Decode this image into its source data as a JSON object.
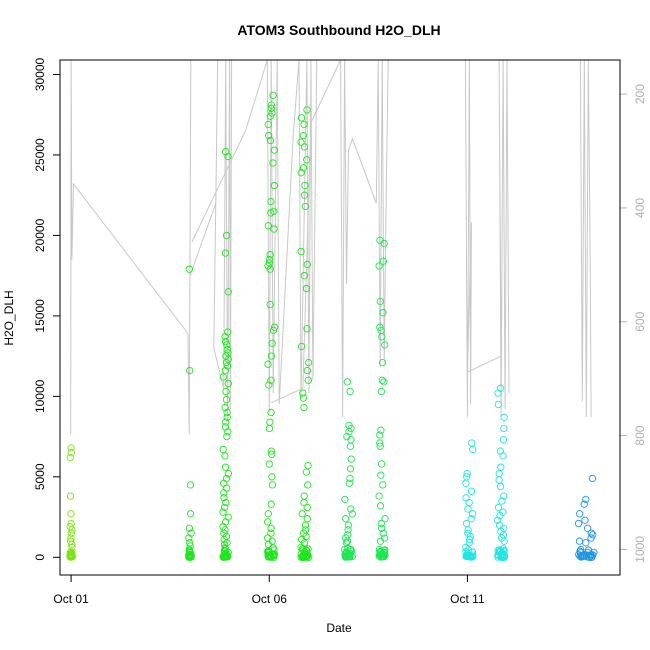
{
  "chart_data": {
    "type": "scatter",
    "title": "ATOM3 Southbound H2O_DLH",
    "xlabel": "Date",
    "ylabel": "H2O_DLH",
    "x_ticks": [
      {
        "day": 1,
        "label": "Oct 01"
      },
      {
        "day": 6,
        "label": "Oct 06"
      },
      {
        "day": 11,
        "label": "Oct 11"
      }
    ],
    "xlim": [
      0.72,
      14.85
    ],
    "y_ticks": [
      0,
      5000,
      10000,
      15000,
      20000,
      25000,
      30000
    ],
    "ylim": [
      -1100,
      30900
    ],
    "y2_ticks": [
      200,
      400,
      600,
      800,
      1000
    ],
    "y2lim": [
      1045,
      140
    ],
    "y2_note": "secondary axis (pressure), inverted",
    "colors": {
      "green_early": "#7be60f",
      "green": "#1ee61e",
      "green_mid": "#1ee650",
      "cyan_green": "#1ee6aa",
      "cyan": "#1ee6e6",
      "sky": "#1eb4e6",
      "blue": "#1e96e6",
      "gray_line": "#c8c8c8",
      "axis_right": "#b0b0b0"
    },
    "clusters": [
      {
        "day": 1.0,
        "width": 0.06,
        "color": "#7be60f",
        "high": [
          6800,
          6500,
          6200,
          3800,
          2700,
          2100,
          1900,
          1700,
          1500,
          1200,
          1000,
          800
        ]
      },
      {
        "day": 4.0,
        "width": 0.06,
        "color": "#1ee61e",
        "high": [
          17900,
          11600,
          4500,
          2700,
          1800,
          1500,
          1200,
          900,
          700
        ]
      },
      {
        "day": 4.9,
        "width": 0.14,
        "color": "#1ee61e",
        "high": [
          25200,
          24900,
          20000,
          18900,
          16500,
          14000,
          13700,
          13400,
          13200,
          12900,
          12700,
          12500,
          12300,
          12100,
          11900,
          11600,
          11200,
          10800,
          10300,
          9800,
          9300,
          9000,
          8700,
          8400,
          8100,
          7800,
          7500,
          6700,
          6300,
          5600,
          5200,
          4900,
          4600,
          4300,
          4000,
          3700,
          3400,
          3100,
          2800,
          2500,
          2200,
          1900,
          1700,
          1500,
          1300,
          1100,
          900,
          800
        ]
      },
      {
        "day": 6.05,
        "width": 0.18,
        "color": "#1ee61e",
        "high": [
          28700,
          28100,
          27900,
          27600,
          27400,
          26900,
          26200,
          25900,
          25300,
          24500,
          23100,
          22100,
          21500,
          21400,
          20600,
          20400,
          18800,
          18500,
          18300,
          18100,
          17900,
          15700,
          14300,
          14100,
          13300,
          12500,
          12000,
          11000,
          10700,
          9000,
          8400,
          8000,
          6600,
          6400,
          5800,
          5000,
          4500,
          3300,
          2700,
          2200,
          1800,
          1500,
          1200,
          1000,
          800
        ]
      },
      {
        "day": 6.9,
        "width": 0.2,
        "color": "#1ee61e",
        "high": [
          27800,
          27300,
          26900,
          26200,
          25800,
          25500,
          24700,
          24200,
          23900,
          23100,
          22500,
          21800,
          19000,
          18200,
          17500,
          16700,
          14200,
          13100,
          12100,
          11600,
          11000,
          10200,
          9900,
          9300,
          5700,
          5300,
          4500,
          3800,
          3400,
          3100,
          2700,
          2400,
          2000,
          1700,
          1500,
          1300,
          1100,
          900
        ]
      },
      {
        "day": 8.0,
        "width": 0.2,
        "color": "#1ee650",
        "high": [
          10900,
          10300,
          8200,
          8000,
          7800,
          7500,
          7300,
          6900,
          6100,
          5500,
          4900,
          4600,
          3600,
          3000,
          2700,
          2400,
          2000,
          1700,
          1400,
          1200,
          1000,
          900
        ]
      },
      {
        "day": 8.85,
        "width": 0.16,
        "color": "#1ee650",
        "high": [
          19700,
          19500,
          18400,
          18100,
          15900,
          15200,
          14300,
          14100,
          13700,
          13200,
          12100,
          11000,
          10900,
          10300,
          7900,
          7600,
          7100,
          6900,
          5800,
          5100,
          4500,
          3800,
          3200,
          2400,
          2100,
          1800,
          1500,
          1200,
          1000
        ]
      },
      {
        "day": 11.05,
        "width": 0.18,
        "color": "#1ee6e6",
        "high": [
          7100,
          6700,
          5200,
          5000,
          4600,
          4100,
          3700,
          3400,
          3000,
          2700,
          2400,
          2100,
          1700,
          1500,
          1300,
          1100,
          900
        ]
      },
      {
        "day": 11.85,
        "width": 0.18,
        "color": "#1ee6e6",
        "high": [
          10500,
          10200,
          9500,
          8700,
          8000,
          7300,
          6600,
          6300,
          5600,
          5200,
          4800,
          4400,
          3800,
          3500,
          3100,
          2800,
          2600,
          2300,
          2000,
          1800,
          1600,
          1400,
          1200,
          1000
        ]
      },
      {
        "day": 14.0,
        "width": 0.4,
        "color": "#1e96e6",
        "high": [
          4900,
          3600,
          3300,
          2700,
          2300,
          2100,
          1800,
          1500,
          1400,
          1200,
          1000,
          900
        ]
      }
    ],
    "pressure_traces": [
      {
        "points": [
          [
            0.99,
            7650
          ],
          [
            1.0,
            30900
          ],
          [
            1.02,
            18500
          ],
          [
            1.06,
            23200
          ],
          [
            3.95,
            13900
          ],
          [
            3.98,
            7650
          ],
          [
            4.02,
            30900
          ],
          [
            4.0,
            17500
          ],
          [
            4.65,
            22000
          ],
          [
            4.7,
            30900
          ],
          [
            4.6,
            13000
          ],
          [
            4.85,
            10500
          ],
          [
            4.9,
            30900
          ],
          [
            4.95,
            8500
          ],
          [
            5.0,
            30900
          ],
          [
            5.02,
            9200
          ],
          [
            5.05,
            30900
          ]
        ]
      },
      {
        "points": [
          [
            4.05,
            19600
          ],
          [
            5.4,
            26500
          ],
          [
            5.95,
            30900
          ],
          [
            6.0,
            9000
          ],
          [
            6.05,
            30900
          ],
          [
            6.1,
            10200
          ],
          [
            6.2,
            30900
          ],
          [
            6.25,
            9500
          ],
          [
            6.6,
            26000
          ],
          [
            6.75,
            30900
          ],
          [
            6.8,
            9800
          ],
          [
            6.95,
            30900
          ],
          [
            7.0,
            10200
          ],
          [
            7.05,
            30900
          ],
          [
            7.1,
            11000
          ],
          [
            7.2,
            30900
          ]
        ]
      },
      {
        "points": [
          [
            6.05,
            9600
          ],
          [
            6.85,
            10500
          ],
          [
            7.05,
            27000
          ],
          [
            7.8,
            30900
          ],
          [
            7.85,
            8700
          ],
          [
            7.9,
            30900
          ],
          [
            7.95,
            17000
          ],
          [
            8.0,
            25300
          ],
          [
            8.1,
            26000
          ],
          [
            8.7,
            22000
          ],
          [
            8.75,
            30900
          ],
          [
            8.8,
            11800
          ],
          [
            8.85,
            30900
          ],
          [
            8.9,
            12000
          ],
          [
            8.95,
            22500
          ],
          [
            9.0,
            30900
          ]
        ]
      },
      {
        "points": [
          [
            10.95,
            30900
          ],
          [
            11.0,
            8700
          ],
          [
            11.05,
            30900
          ],
          [
            11.08,
            9500
          ],
          [
            11.1,
            20800
          ],
          [
            11.0,
            11500
          ],
          [
            11.85,
            12500
          ],
          [
            11.8,
            30900
          ],
          [
            11.85,
            8800
          ],
          [
            11.9,
            30900
          ],
          [
            11.95,
            9200
          ],
          [
            12.0,
            30900
          ],
          [
            12.05,
            10200
          ]
        ]
      },
      {
        "points": [
          [
            13.85,
            30900
          ],
          [
            13.9,
            9700
          ],
          [
            13.95,
            30900
          ],
          [
            14.0,
            8700
          ],
          [
            14.05,
            30900
          ],
          [
            14.1,
            17800
          ],
          [
            14.12,
            8700
          ]
        ]
      }
    ]
  }
}
